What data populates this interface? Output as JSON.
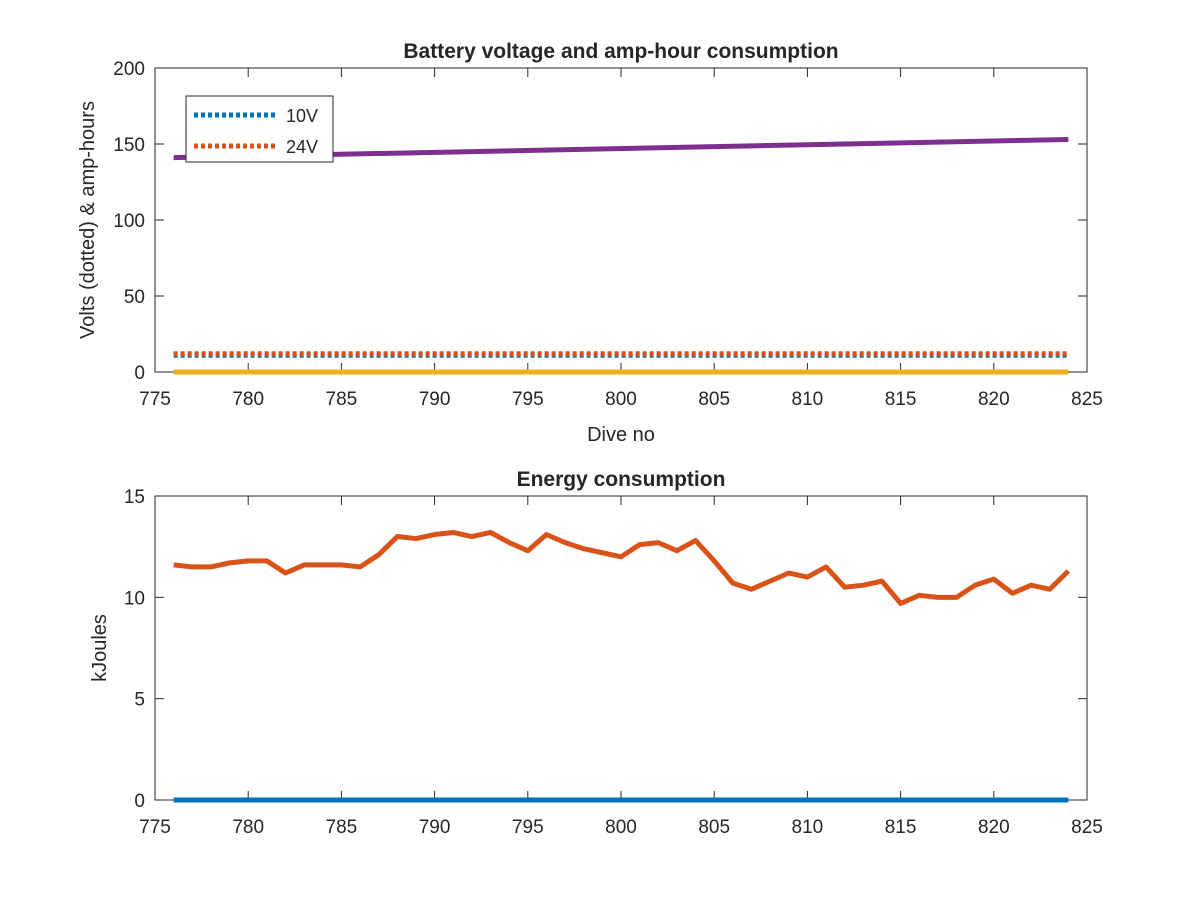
{
  "chart_data": [
    {
      "type": "line",
      "title": "Battery voltage and amp-hour consumption",
      "xlabel": "Dive no",
      "ylabel": "Volts (dotted) & amp-hours",
      "xlim": [
        775,
        825
      ],
      "ylim": [
        0,
        200
      ],
      "xticks": [
        775,
        780,
        785,
        790,
        795,
        800,
        805,
        810,
        815,
        820,
        825
      ],
      "yticks": [
        0,
        50,
        100,
        150,
        200
      ],
      "grid": false,
      "legend_position": "top-left",
      "series": [
        {
          "name": "10V",
          "style": "dotted",
          "color": "#0072BD",
          "x": [
            776,
            800,
            824
          ],
          "y": [
            11,
            11,
            11
          ]
        },
        {
          "name": "24V",
          "style": "dotted",
          "color": "#D95319",
          "x": [
            776,
            800,
            824
          ],
          "y": [
            12,
            12,
            12
          ]
        },
        {
          "style": "solid",
          "color": "#7E2F8E",
          "x": [
            776,
            824
          ],
          "y": [
            141,
            153
          ]
        },
        {
          "style": "solid",
          "color": "#EDB120",
          "x": [
            776,
            824
          ],
          "y": [
            0,
            0
          ]
        }
      ]
    },
    {
      "type": "line",
      "title": "Energy consumption",
      "xlabel": "",
      "ylabel": "kJoules",
      "xlim": [
        775,
        825
      ],
      "ylim": [
        0,
        15
      ],
      "xticks": [
        775,
        780,
        785,
        790,
        795,
        800,
        805,
        810,
        815,
        820,
        825
      ],
      "yticks": [
        0,
        5,
        10,
        15
      ],
      "grid": false,
      "series": [
        {
          "style": "solid",
          "color": "#D95319",
          "x": [
            776,
            777,
            778,
            779,
            780,
            781,
            782,
            783,
            784,
            785,
            786,
            787,
            788,
            789,
            790,
            791,
            792,
            793,
            794,
            795,
            796,
            797,
            798,
            799,
            800,
            801,
            802,
            803,
            804,
            805,
            806,
            807,
            808,
            809,
            810,
            811,
            812,
            813,
            814,
            815,
            816,
            817,
            818,
            819,
            820,
            821,
            822,
            823,
            824
          ],
          "y": [
            11.6,
            11.5,
            11.5,
            11.7,
            11.8,
            11.8,
            11.2,
            11.6,
            11.6,
            11.6,
            11.5,
            12.1,
            13.0,
            12.9,
            13.1,
            13.2,
            13.0,
            13.2,
            12.7,
            12.3,
            13.1,
            12.7,
            12.4,
            12.2,
            12.0,
            12.6,
            12.7,
            12.3,
            12.8,
            11.8,
            10.7,
            10.4,
            10.8,
            11.2,
            11.0,
            11.5,
            10.5,
            10.6,
            10.8,
            9.7,
            10.1,
            10.0,
            10.0,
            10.6,
            10.9,
            10.2,
            10.6,
            10.4,
            11.3
          ]
        },
        {
          "style": "solid",
          "color": "#0072BD",
          "x": [
            776,
            824
          ],
          "y": [
            0,
            0
          ]
        }
      ]
    }
  ]
}
